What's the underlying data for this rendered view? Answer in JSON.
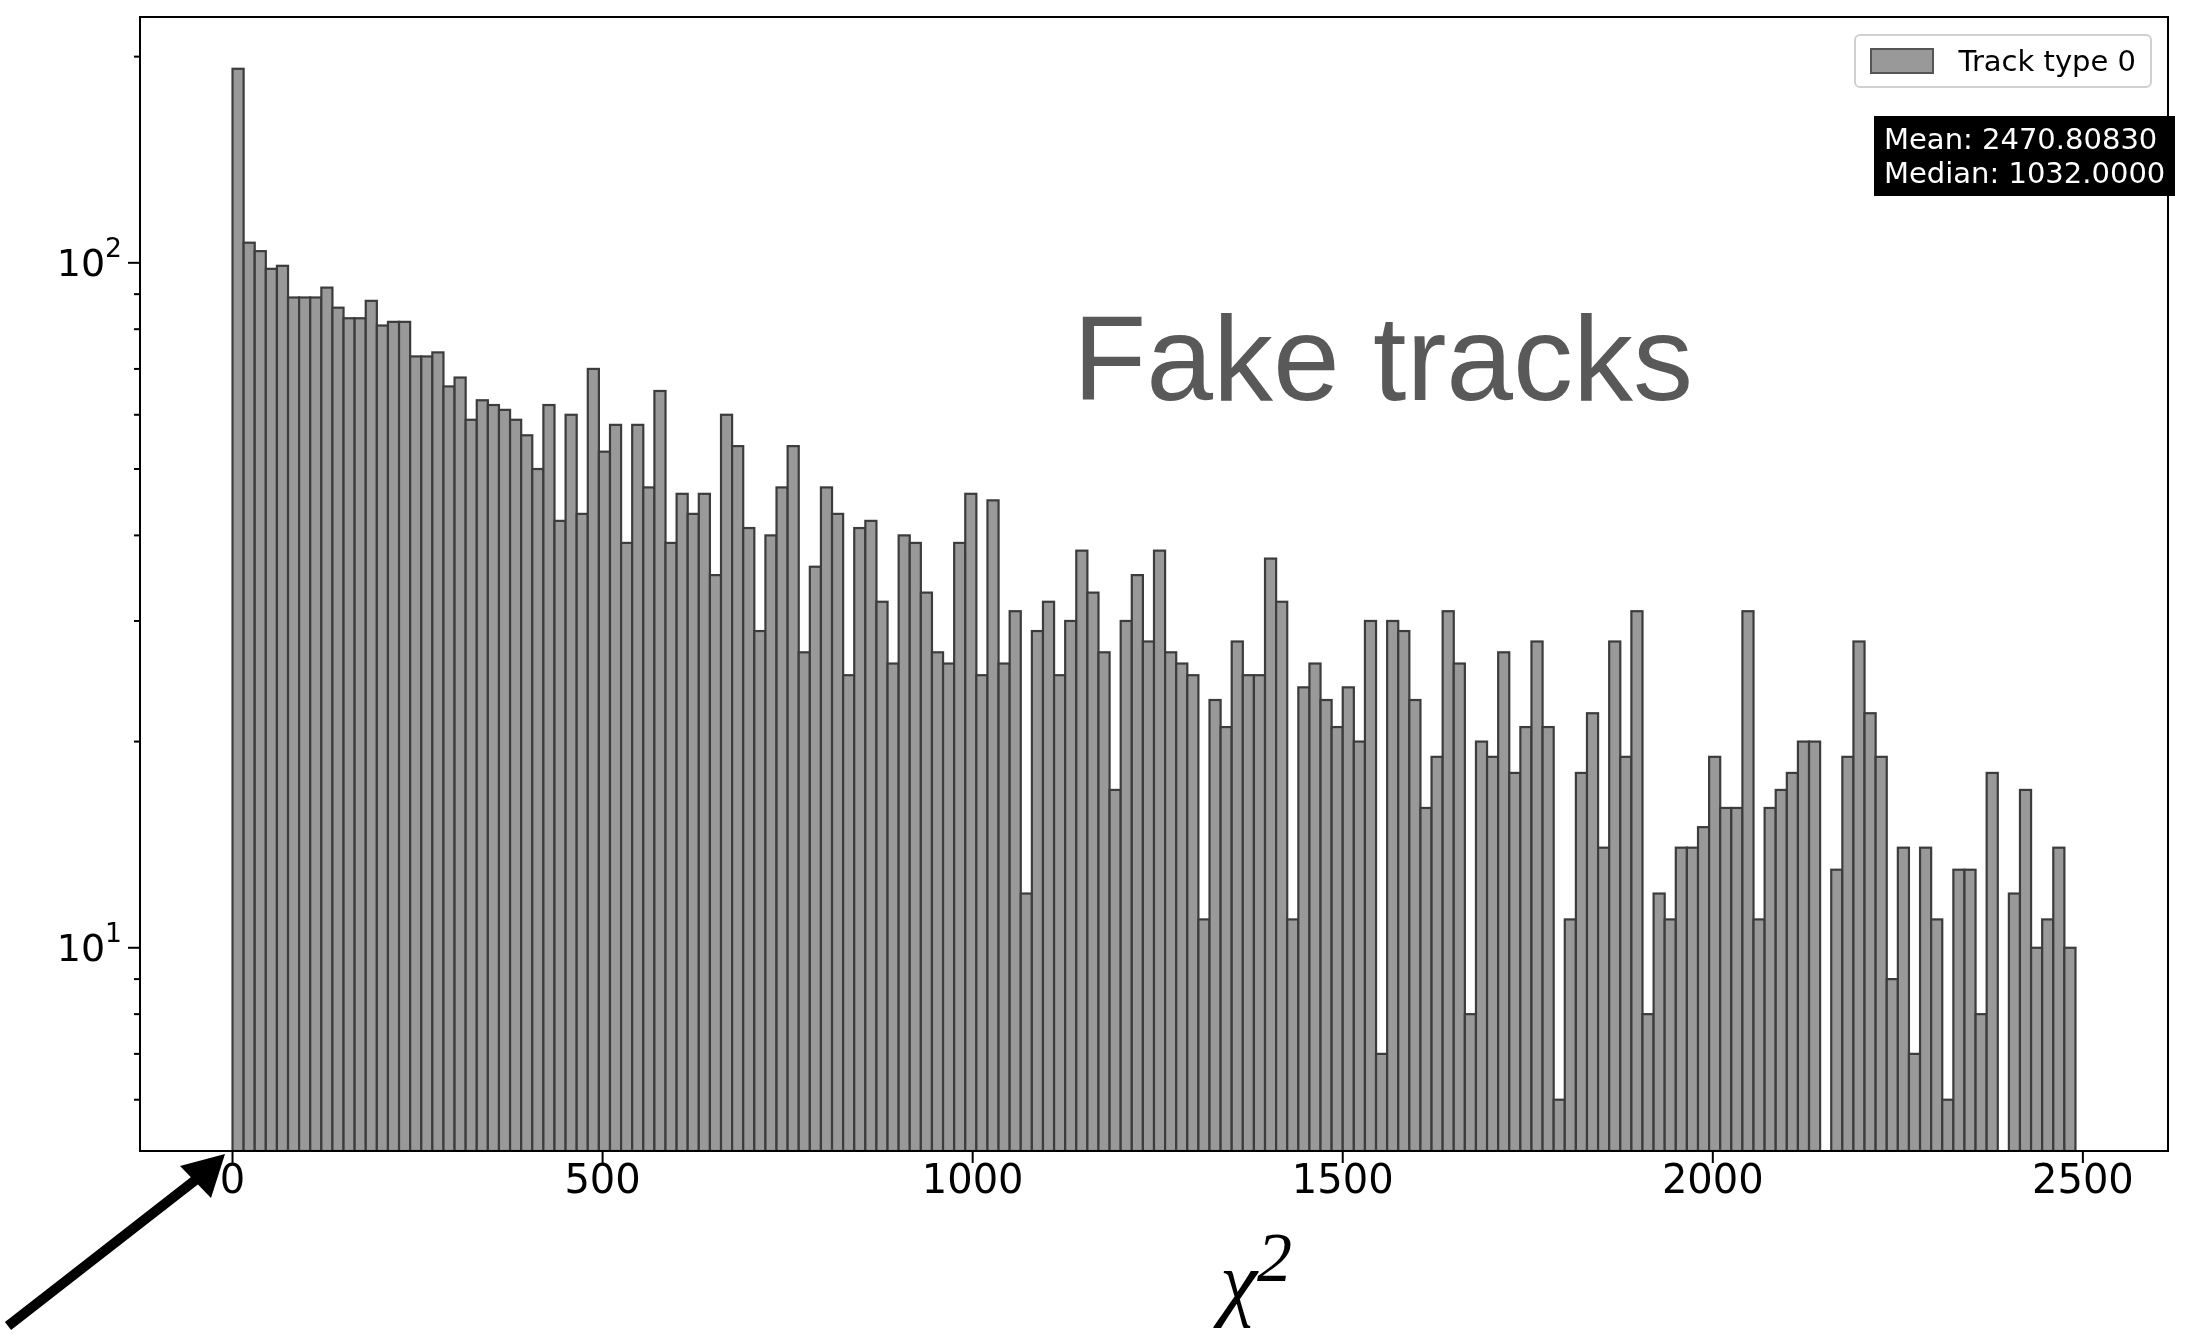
{
  "chart_data": {
    "type": "histogram",
    "xlabel": "χ$^{2}$",
    "annotations": [
      "Fake tracks",
      "Mean: 2470.80830",
      "Median: 1032.0000"
    ],
    "bins": [
      0,
      15,
      30,
      45,
      60,
      75,
      90,
      105,
      120,
      135,
      150,
      165,
      180,
      195,
      210,
      225,
      240,
      255,
      270,
      285,
      300,
      315,
      330,
      345,
      360,
      375,
      390,
      405,
      420,
      435,
      450,
      465,
      480,
      495,
      510,
      525,
      540,
      555,
      570,
      585,
      600,
      615,
      630,
      645,
      660,
      675,
      690,
      705,
      720,
      735,
      750,
      765,
      780,
      795,
      810,
      825,
      840,
      855,
      870,
      885,
      900,
      915,
      930,
      945,
      960,
      975,
      990,
      1005,
      1020,
      1035,
      1050,
      1065,
      1080,
      1095,
      1110,
      1125,
      1140,
      1155,
      1170,
      1185,
      1200,
      1215,
      1230,
      1245,
      1260,
      1275,
      1290,
      1305,
      1320,
      1335,
      1350,
      1365,
      1380,
      1395,
      1410,
      1425,
      1440,
      1455,
      1470,
      1485,
      1500,
      1515,
      1530,
      1545,
      1560,
      1575,
      1590,
      1605,
      1620,
      1635,
      1650,
      1665,
      1680,
      1695,
      1710,
      1725,
      1740,
      1755,
      1770,
      1785,
      1800,
      1815,
      1830,
      1845,
      1860,
      1875,
      1890,
      1905,
      1920,
      1935,
      1950,
      1965,
      1980,
      1995,
      2010,
      2025,
      2040,
      2055,
      2070,
      2085,
      2100,
      2115,
      2130,
      2145,
      2160,
      2175,
      2190,
      2205,
      2220,
      2235,
      2250,
      2265,
      2280,
      2295,
      2310,
      2325,
      2340,
      2355,
      2370,
      2385,
      2400,
      2415,
      2430,
      2445,
      2460,
      2475,
      2490
    ],
    "series": [
      {
        "name": "Track type 0",
        "color": "#999999",
        "values": [
          192,
          107,
          104,
          98,
          99,
          89,
          89,
          89,
          92,
          86,
          83,
          83,
          88,
          81,
          82,
          82,
          73,
          73,
          74,
          66,
          68,
          59,
          63,
          62,
          61,
          59,
          56,
          50,
          62,
          42,
          60,
          43,
          70,
          53,
          58,
          39,
          58,
          47,
          65,
          39,
          46,
          43,
          46,
          35,
          60,
          54,
          41,
          29,
          40,
          47,
          54,
          27,
          36,
          47,
          43,
          25,
          41,
          42,
          32,
          26,
          40,
          39,
          33,
          27,
          26,
          39,
          46,
          25,
          45,
          26,
          31,
          12,
          29,
          32,
          25,
          30,
          38,
          33,
          27,
          17,
          30,
          35,
          28,
          38,
          27,
          26,
          25,
          11,
          23,
          21,
          28,
          25,
          25,
          37,
          32,
          11,
          24,
          26,
          23,
          21,
          24,
          20,
          30,
          7,
          30,
          29,
          23,
          16,
          19,
          31,
          26,
          8,
          20,
          19,
          27,
          18,
          21,
          28,
          21,
          6,
          11,
          18,
          22,
          14,
          28,
          19,
          31,
          8,
          12,
          11,
          14,
          14,
          15,
          19,
          16,
          16,
          31,
          11,
          16,
          17,
          18,
          20,
          20,
          null,
          13,
          19,
          28,
          22,
          19,
          9,
          14,
          7,
          14,
          11,
          6,
          13,
          13,
          8,
          18,
          null,
          12,
          17,
          10,
          11,
          14,
          10
        ]
      }
    ],
    "xlim": [
      -125,
      2615
    ],
    "xticks": [
      0,
      500,
      1000,
      1500,
      2000,
      2500
    ],
    "ylim": [
      5.05,
      228.5
    ],
    "yticks": [
      {
        "value": 6,
        "label": null
      },
      {
        "value": 7,
        "label": null
      },
      {
        "value": 8,
        "label": null
      },
      {
        "value": 9,
        "label": null
      },
      {
        "value": 10,
        "label": "10$^{1}$"
      },
      {
        "value": 20,
        "label": null
      },
      {
        "value": 30,
        "label": null
      },
      {
        "value": 40,
        "label": null
      },
      {
        "value": 50,
        "label": null
      },
      {
        "value": 60,
        "label": null
      },
      {
        "value": 70,
        "label": null
      },
      {
        "value": 80,
        "label": null
      },
      {
        "value": 90,
        "label": null
      },
      {
        "value": 100,
        "label": "10$^{2}$"
      },
      {
        "value": 200,
        "label": null
      }
    ],
    "log": true,
    "legend": "top right"
  }
}
